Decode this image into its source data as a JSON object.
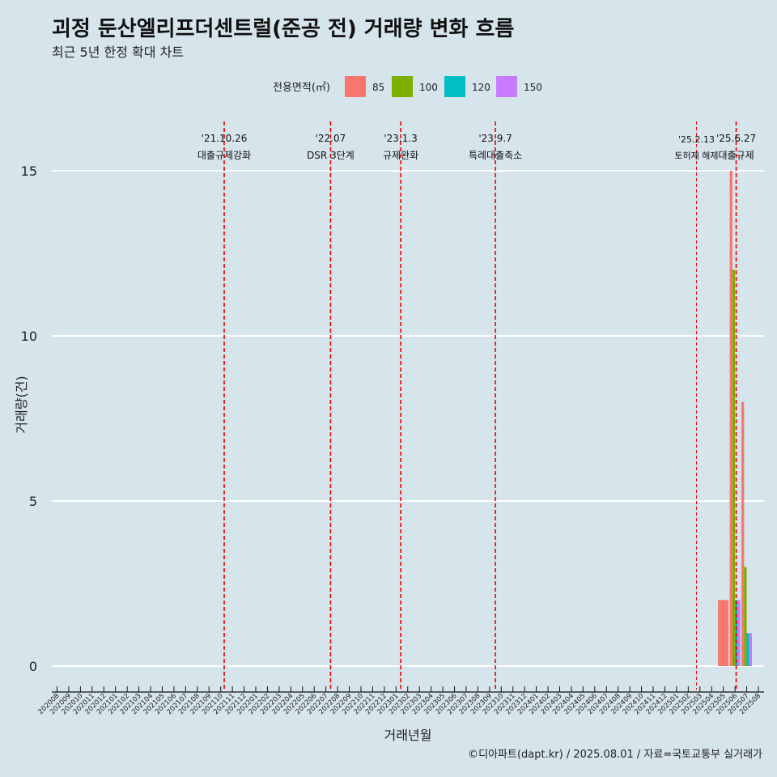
{
  "chart_data": {
    "type": "bar",
    "title": "괴정 둔산엘리프더센트럴(준공 전) 거래량 변화 흐름",
    "subtitle": "최근 5년 한정 확대 차트",
    "xlabel": "거래년월",
    "ylabel": "거래량(건)",
    "caption": "©디아파트(dapt.kr) / 2025.08.01 / 자료=국토교통부 실거래가",
    "ylim": [
      -1,
      16.5
    ],
    "yticks": [
      0,
      5,
      10,
      15
    ],
    "legend": {
      "title": "전용면적(㎡)",
      "position": "top",
      "entries": [
        {
          "label": "85",
          "color": "#f8766d"
        },
        {
          "label": "100",
          "color": "#7cae00"
        },
        {
          "label": "120",
          "color": "#00bfc4"
        },
        {
          "label": "150",
          "color": "#c77cff"
        }
      ]
    },
    "categories": [
      "202008",
      "202009",
      "202010",
      "202011",
      "202012",
      "202101",
      "202102",
      "202103",
      "202104",
      "202105",
      "202106",
      "202107",
      "202108",
      "202109",
      "202110",
      "202111",
      "202112",
      "202201",
      "202202",
      "202203",
      "202204",
      "202205",
      "202206",
      "202207",
      "202208",
      "202209",
      "202210",
      "202211",
      "202212",
      "202301",
      "202302",
      "202303",
      "202304",
      "202305",
      "202306",
      "202307",
      "202308",
      "202309",
      "202310",
      "202311",
      "202312",
      "202401",
      "202402",
      "202403",
      "202404",
      "202405",
      "202406",
      "202407",
      "202408",
      "202409",
      "202410",
      "202411",
      "202412",
      "202501",
      "202502",
      "202503",
      "202504",
      "202505",
      "202506",
      "202507",
      "202508"
    ],
    "bars": [
      {
        "category": "202505",
        "series": "85",
        "value": 2,
        "width": 1
      },
      {
        "category": "202506",
        "series": "85",
        "value": 15,
        "width": 0.25
      },
      {
        "category": "202506",
        "series": "100",
        "value": 12,
        "width": 0.25
      },
      {
        "category": "202506",
        "series": "120",
        "value": 2,
        "width": 0.25
      },
      {
        "category": "202506",
        "series": "150",
        "value": 2,
        "width": 0.25
      },
      {
        "category": "202507",
        "series": "85",
        "value": 8,
        "width": 0.25
      },
      {
        "category": "202507",
        "series": "100",
        "value": 3,
        "width": 0.25
      },
      {
        "category": "202507",
        "series": "120",
        "value": 1,
        "width": 0.25
      },
      {
        "category": "202507",
        "series": "150",
        "value": 1,
        "width": 0.25
      }
    ],
    "events": [
      {
        "month_index": 14.3,
        "date": "'21.10.26",
        "label": "대출규제강화",
        "style": "bold"
      },
      {
        "month_index": 23.4,
        "date": "'22.07",
        "label": "DSR 3단계",
        "style": "bold"
      },
      {
        "month_index": 29.4,
        "date": "'23.1.3",
        "label": "규제완화",
        "style": "bold"
      },
      {
        "month_index": 37.5,
        "date": "'23.9.7",
        "label": "특례대출축소",
        "style": "bold"
      },
      {
        "month_index": 54.7,
        "date": "'25.2.13",
        "label": "토허제 해제",
        "style": "thin"
      },
      {
        "month_index": 58.1,
        "date": "'25.6.27",
        "label": "대출규제",
        "style": "bold"
      }
    ]
  }
}
